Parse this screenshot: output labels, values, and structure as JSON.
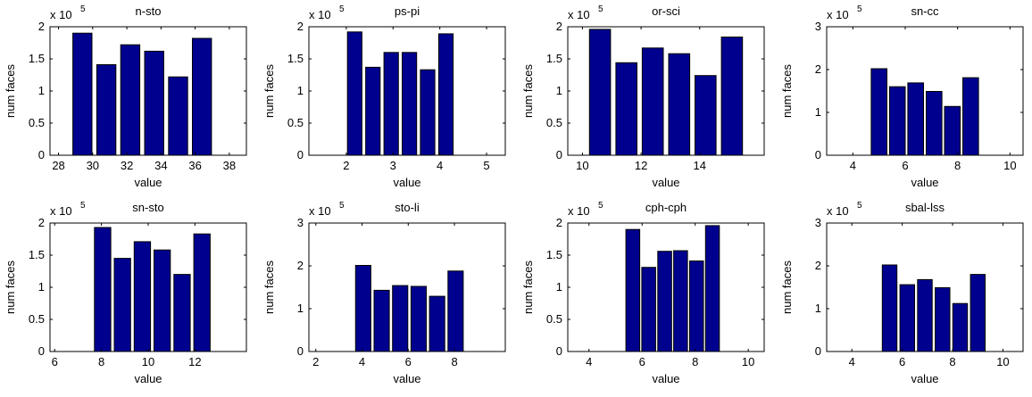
{
  "chart_data": [
    {
      "type": "bar",
      "title": "n-sto",
      "xlabel": "value",
      "ylabel": "num faces",
      "multiplier": "x 10",
      "exponent": "5",
      "xlim": [
        27.5,
        39
      ],
      "ylim": [
        0,
        2
      ],
      "xticks": [
        28,
        30,
        32,
        34,
        36,
        38
      ],
      "yticks": [
        0,
        0.5,
        1,
        1.5,
        2
      ],
      "ytick_labels": [
        "0",
        "0.5",
        "1",
        "1.5",
        "2"
      ],
      "x": [
        29.4,
        30.8,
        32.2,
        33.6,
        35.0,
        36.4
      ],
      "bar_width": 1.12,
      "values": [
        1.9,
        1.41,
        1.72,
        1.62,
        1.22,
        1.82
      ]
    },
    {
      "type": "bar",
      "title": "ps-pi",
      "xlabel": "value",
      "ylabel": "num faces",
      "multiplier": "x 10",
      "exponent": "5",
      "xlim": [
        1.2,
        5.4
      ],
      "ylim": [
        0,
        2
      ],
      "xticks": [
        2,
        3,
        4,
        5
      ],
      "yticks": [
        0,
        0.5,
        1,
        1.5,
        2
      ],
      "ytick_labels": [
        "0",
        "0.5",
        "1",
        "1.5",
        "2"
      ],
      "x": [
        2.18,
        2.57,
        2.96,
        3.35,
        3.74,
        4.13
      ],
      "bar_width": 0.31,
      "values": [
        1.92,
        1.37,
        1.6,
        1.6,
        1.33,
        1.89
      ]
    },
    {
      "type": "bar",
      "title": "or-sci",
      "xlabel": "value",
      "ylabel": "num faces",
      "multiplier": "x 10",
      "exponent": "5",
      "xlim": [
        9.5,
        16.2
      ],
      "ylim": [
        0,
        2
      ],
      "xticks": [
        10,
        12,
        14
      ],
      "yticks": [
        0,
        0.5,
        1,
        1.5,
        2
      ],
      "ytick_labels": [
        "0",
        "0.5",
        "1",
        "1.5",
        "2"
      ],
      "x": [
        10.6,
        11.5,
        12.4,
        13.3,
        14.2,
        15.1
      ],
      "bar_width": 0.72,
      "values": [
        1.96,
        1.44,
        1.67,
        1.58,
        1.24,
        1.84
      ]
    },
    {
      "type": "bar",
      "title": "sn-cc",
      "xlabel": "value",
      "ylabel": "num faces",
      "multiplier": "x 10",
      "exponent": "5",
      "xlim": [
        3,
        10.5
      ],
      "ylim": [
        0,
        3
      ],
      "xticks": [
        4,
        6,
        8,
        10
      ],
      "yticks": [
        0,
        1,
        2,
        3
      ],
      "ytick_labels": [
        "0",
        "1",
        "2",
        "3"
      ],
      "x": [
        5.0,
        5.7,
        6.4,
        7.1,
        7.8,
        8.5
      ],
      "bar_width": 0.6,
      "values": [
        2.02,
        1.6,
        1.69,
        1.49,
        1.14,
        1.81
      ]
    },
    {
      "type": "bar",
      "title": "sn-sto",
      "xlabel": "value",
      "ylabel": "num faces",
      "multiplier": "x 10",
      "exponent": "5",
      "xlim": [
        5.8,
        14.2
      ],
      "ylim": [
        0,
        2
      ],
      "xticks": [
        6,
        8,
        10,
        12
      ],
      "yticks": [
        0,
        0.5,
        1,
        1.5,
        2
      ],
      "ytick_labels": [
        "0",
        "0.5",
        "1",
        "1.5",
        "2"
      ],
      "x": [
        8.05,
        8.9,
        9.75,
        10.6,
        11.45,
        12.3
      ],
      "bar_width": 0.7,
      "values": [
        1.93,
        1.45,
        1.71,
        1.58,
        1.2,
        1.83
      ]
    },
    {
      "type": "bar",
      "title": "sto-li",
      "xlabel": "value",
      "ylabel": "num faces",
      "multiplier": "x 10",
      "exponent": "5",
      "xlim": [
        1.7,
        10.2
      ],
      "ylim": [
        0,
        3
      ],
      "xticks": [
        2,
        4,
        6,
        8
      ],
      "yticks": [
        0,
        1,
        2,
        3
      ],
      "ytick_labels": [
        "0",
        "1",
        "2",
        "3"
      ],
      "x": [
        4.05,
        4.85,
        5.65,
        6.45,
        7.25,
        8.05
      ],
      "bar_width": 0.66,
      "values": [
        2.01,
        1.43,
        1.54,
        1.52,
        1.29,
        1.88
      ]
    },
    {
      "type": "bar",
      "title": "cph-cph",
      "xlabel": "value",
      "ylabel": "num faces",
      "multiplier": "x 10",
      "exponent": "5",
      "xlim": [
        3.2,
        10.6
      ],
      "ylim": [
        0,
        2
      ],
      "xticks": [
        4,
        6,
        8,
        10
      ],
      "yticks": [
        0,
        0.5,
        1,
        1.5,
        2
      ],
      "ytick_labels": [
        "0",
        "0.5",
        "1",
        "1.5",
        "2"
      ],
      "x": [
        5.65,
        6.25,
        6.85,
        7.45,
        8.05,
        8.65
      ],
      "bar_width": 0.52,
      "values": [
        1.9,
        1.31,
        1.56,
        1.57,
        1.41,
        1.96
      ]
    },
    {
      "type": "bar",
      "title": "sbal-lss",
      "xlabel": "value",
      "ylabel": "num faces",
      "multiplier": "x 10",
      "exponent": "5",
      "xlim": [
        3,
        10.8
      ],
      "ylim": [
        0,
        3
      ],
      "xticks": [
        4,
        6,
        8,
        10
      ],
      "yticks": [
        0,
        1,
        2,
        3
      ],
      "ytick_labels": [
        "0",
        "1",
        "2",
        "3"
      ],
      "x": [
        5.5,
        6.2,
        6.9,
        7.6,
        8.3,
        9.0
      ],
      "bar_width": 0.58,
      "values": [
        2.02,
        1.56,
        1.68,
        1.49,
        1.12,
        1.8
      ]
    }
  ],
  "colors": {
    "bar_fill": "#00008f",
    "bar_edge": "#000000",
    "axes": "#000000"
  }
}
